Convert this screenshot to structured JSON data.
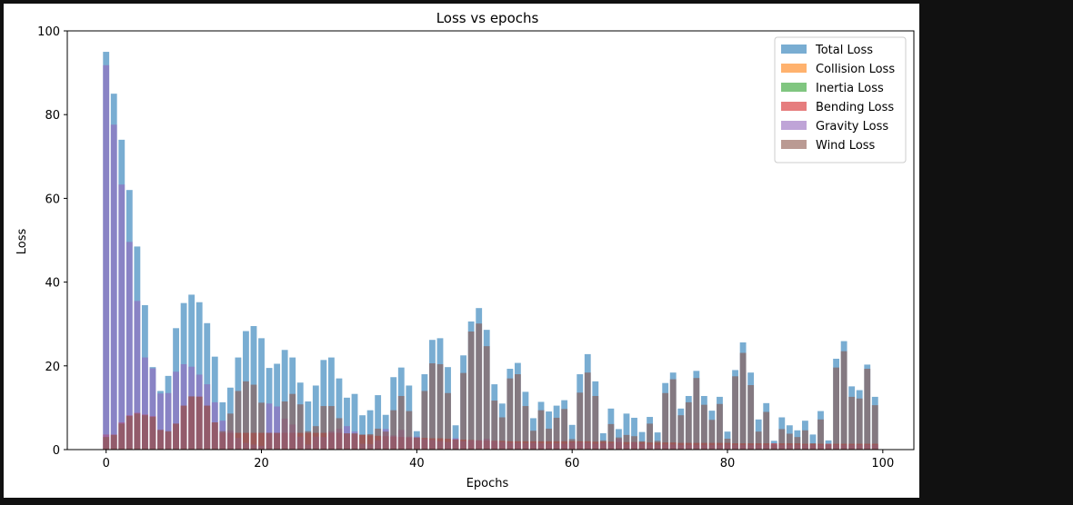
{
  "chart_data": {
    "type": "bar",
    "title": "Loss vs epochs",
    "xlabel": "Epochs",
    "ylabel": "Loss",
    "xlim": [
      -5,
      104
    ],
    "ylim": [
      0,
      100
    ],
    "x_ticks": [
      0,
      20,
      40,
      60,
      80,
      100
    ],
    "y_ticks": [
      0,
      20,
      40,
      60,
      80,
      100
    ],
    "legend_position": "top-right",
    "bar_alpha": 0.6,
    "series": [
      {
        "name": "Total Loss",
        "color": "#1f77b4",
        "values": [
          95,
          85,
          74,
          62,
          48.5,
          34.5,
          19.7,
          14,
          17.6,
          29,
          35,
          37,
          35.2,
          30.2,
          22.2,
          11.3,
          14.8,
          22,
          28.3,
          29.5,
          26.6,
          19.5,
          20.5,
          23.8,
          22,
          16,
          11.5,
          15.3,
          21.4,
          22,
          17,
          12.4,
          13.3,
          8.2,
          9.4,
          13,
          8.3,
          17.3,
          19.6,
          15.3,
          4.4,
          18,
          26.2,
          26.6,
          19.7,
          5.8,
          22.5,
          30.6,
          33.8,
          28.6,
          15.6,
          11,
          19.3,
          20.7,
          13.8,
          7.5,
          11.4,
          9.1,
          10.5,
          11.8,
          5.9,
          18,
          22.8,
          16.3,
          3.9,
          9.8,
          4.9,
          8.6,
          7.6,
          4.2,
          7.8,
          4.1,
          15.9,
          18.4,
          9.8,
          12.8,
          18.8,
          12.8,
          9.3,
          12.6,
          4.3,
          19,
          25.6,
          18.4,
          7.2,
          11.1,
          2.1,
          7.7,
          5.8,
          4.6,
          6.9,
          3.6,
          9.2,
          2.2,
          21.7,
          25.9,
          15.1,
          14.2,
          20.3,
          12.6
        ]
      },
      {
        "name": "Collision Loss",
        "color": "#ff7f0e",
        "values": [
          0.2,
          0.2,
          0.2,
          0.2,
          0.2,
          0.2,
          0.2,
          0.2,
          0.2,
          0.2,
          0.2,
          0.2,
          0.2,
          0.2,
          0.2,
          0.2,
          0.2,
          0.2,
          0.2,
          0.2,
          0.2,
          0.2,
          0.2,
          0.2,
          0.2,
          0.2,
          0.2,
          0.2,
          0.2,
          0.2,
          0.2,
          0.2,
          0.2,
          0.2,
          0.2,
          0.2,
          0.2,
          0.2,
          0.2,
          0.2,
          0.2,
          0.2,
          0.2,
          0.2,
          0.2,
          0.2,
          0.2,
          0.2,
          0.2,
          0.2,
          0.2,
          0.2,
          0.2,
          0.2,
          0.2,
          0.2,
          0.2,
          0.2,
          0.2,
          0.2,
          0.2,
          0.2,
          0.2,
          0.2,
          0.2,
          0.2,
          0.2,
          0.2,
          0.2,
          0.2,
          0.2,
          0.2,
          0.2,
          0.2,
          0.2,
          0.2,
          0.2,
          0.2,
          0.2,
          0.2,
          0.2,
          0.2,
          0.2,
          0.2,
          0.2,
          0.2,
          0.2,
          0.2,
          0.2,
          0.2,
          0.2,
          0.2,
          0.2,
          0.2,
          0.2,
          0.2,
          0.2,
          0.2,
          0.2,
          0.2
        ]
      },
      {
        "name": "Inertia Loss",
        "color": "#2ca02c",
        "values": [
          0.3,
          0.3,
          0.3,
          0.3,
          0.3,
          0.3,
          0.3,
          0.3,
          0.3,
          0.3,
          0.3,
          0.3,
          0.3,
          0.3,
          0.3,
          0.3,
          0.3,
          0.3,
          0.3,
          0.3,
          0.3,
          0.3,
          0.3,
          0.3,
          0.3,
          0.3,
          0.3,
          0.3,
          0.3,
          0.3,
          0.3,
          0.3,
          0.3,
          0.3,
          0.3,
          0.3,
          0.3,
          0.3,
          0.3,
          0.3,
          0.3,
          0.3,
          0.3,
          0.3,
          0.3,
          0.3,
          0.3,
          0.3,
          0.3,
          0.3,
          0.3,
          0.3,
          0.3,
          0.3,
          0.3,
          0.3,
          0.3,
          0.3,
          0.3,
          0.3,
          0.3,
          0.3,
          0.3,
          0.3,
          0.3,
          0.3,
          0.3,
          0.3,
          0.3,
          0.3,
          0.3,
          0.3,
          0.3,
          0.3,
          0.3,
          0.3,
          0.3,
          0.3,
          0.3,
          0.3,
          0.3,
          0.3,
          0.3,
          0.3,
          0.3,
          0.3,
          0.3,
          0.3,
          0.3,
          0.3,
          0.3,
          0.3,
          0.3,
          0.3,
          0.3,
          0.3,
          0.3,
          0.3,
          0.3,
          0.3
        ]
      },
      {
        "name": "Bending Loss",
        "color": "#d62728",
        "values": [
          3.6,
          3.6,
          6.5,
          8.2,
          8.8,
          8.4,
          8,
          4.7,
          4.3,
          6.2,
          10.5,
          12.7,
          12.7,
          10.5,
          6.5,
          4,
          4,
          4,
          4,
          4,
          4,
          4,
          4,
          4,
          4,
          4,
          4,
          4,
          4,
          4,
          4,
          3.8,
          3.7,
          3.5,
          3.4,
          3.3,
          3.2,
          3.1,
          3,
          2.9,
          2.8,
          2.8,
          2.7,
          2.7,
          2.6,
          2.5,
          2.4,
          2.3,
          2.2,
          2.2,
          2.1,
          2.1,
          2,
          2,
          2,
          2,
          2,
          2,
          2,
          2,
          2,
          2,
          2,
          1.9,
          1.9,
          1.9,
          1.8,
          1.8,
          1.8,
          1.8,
          1.7,
          1.7,
          1.7,
          1.7,
          1.6,
          1.6,
          1.6,
          1.6,
          1.6,
          1.6,
          1.6,
          1.5,
          1.5,
          1.5,
          1.5,
          1.5,
          1.5,
          1.5,
          1.5,
          1.5,
          1.4,
          1.4,
          1.4,
          1.4,
          1.4,
          1.4,
          1.4,
          1.4,
          1.4,
          1.4
        ]
      },
      {
        "name": "Gravity Loss",
        "color": "#9467bd",
        "values": [
          91.8,
          77.6,
          63.3,
          49.6,
          35.5,
          22,
          19.4,
          13.4,
          13.5,
          18.6,
          20.4,
          19.8,
          17.9,
          15.6,
          11.3,
          6.9,
          4.6,
          2.8,
          1.6,
          1.2,
          0.9,
          11,
          10.3,
          7.4,
          6,
          3.1,
          1.2,
          3.1,
          3,
          4.4,
          5,
          5.6,
          4.3,
          1.4,
          1.3,
          2.2,
          4.9,
          3.4,
          4.7,
          3.1,
          3.1,
          2.5,
          2.3,
          2,
          1.8,
          2.7,
          2,
          2.2,
          2.2,
          2.6,
          2,
          1.8,
          1.6,
          1.6,
          1.5,
          1.6,
          1.5,
          1.4,
          1.5,
          1.4,
          1.7,
          1.7,
          1.6,
          1.4,
          1.5,
          1.5,
          2.6,
          1.2,
          1.7,
          1.4,
          1.2,
          1.1,
          1.2,
          1.2,
          1.1,
          1.1,
          1.1,
          1.1,
          1.1,
          1.1,
          1.2,
          1.1,
          1.1,
          1.1,
          1.1,
          1.1,
          1.1,
          1.1,
          1.1,
          1.1,
          1.1,
          1.1,
          1.1,
          1.1,
          1.1,
          1.1,
          1.1,
          1.1,
          1.1,
          1.1
        ]
      },
      {
        "name": "Wind Loss",
        "color": "#8c564b",
        "values": [
          3,
          3.5,
          6.2,
          8,
          8.6,
          8.2,
          7.8,
          4.7,
          4.4,
          6.2,
          10.5,
          12.7,
          12.6,
          10.5,
          6.5,
          4.4,
          8.6,
          14,
          16.3,
          15.5,
          11.2,
          4,
          4,
          11.5,
          13.3,
          10.8,
          4.4,
          5.6,
          10.4,
          10.4,
          7.5,
          3.9,
          3.9,
          3.6,
          3.7,
          5,
          4.3,
          9.4,
          12.8,
          9.2,
          2.9,
          14,
          20.6,
          20.4,
          13.5,
          2.4,
          18.3,
          28.2,
          30.1,
          24.7,
          11.7,
          7.7,
          17,
          18,
          10.4,
          4.5,
          9.4,
          5,
          7.6,
          9.7,
          2.5,
          13.6,
          18.4,
          12.8,
          2.2,
          6.1,
          2.9,
          3.5,
          3.2,
          2,
          6.2,
          2.1,
          13.5,
          16.8,
          8.2,
          11.3,
          17.1,
          10.7,
          7.1,
          10.9,
          2.6,
          17.5,
          23.1,
          15.4,
          4.3,
          9,
          1.2,
          4.9,
          3.8,
          3,
          4.6,
          1.5,
          7.2,
          1.2,
          19.6,
          23.5,
          12.6,
          12.2,
          19.3,
          10.6
        ]
      }
    ]
  }
}
